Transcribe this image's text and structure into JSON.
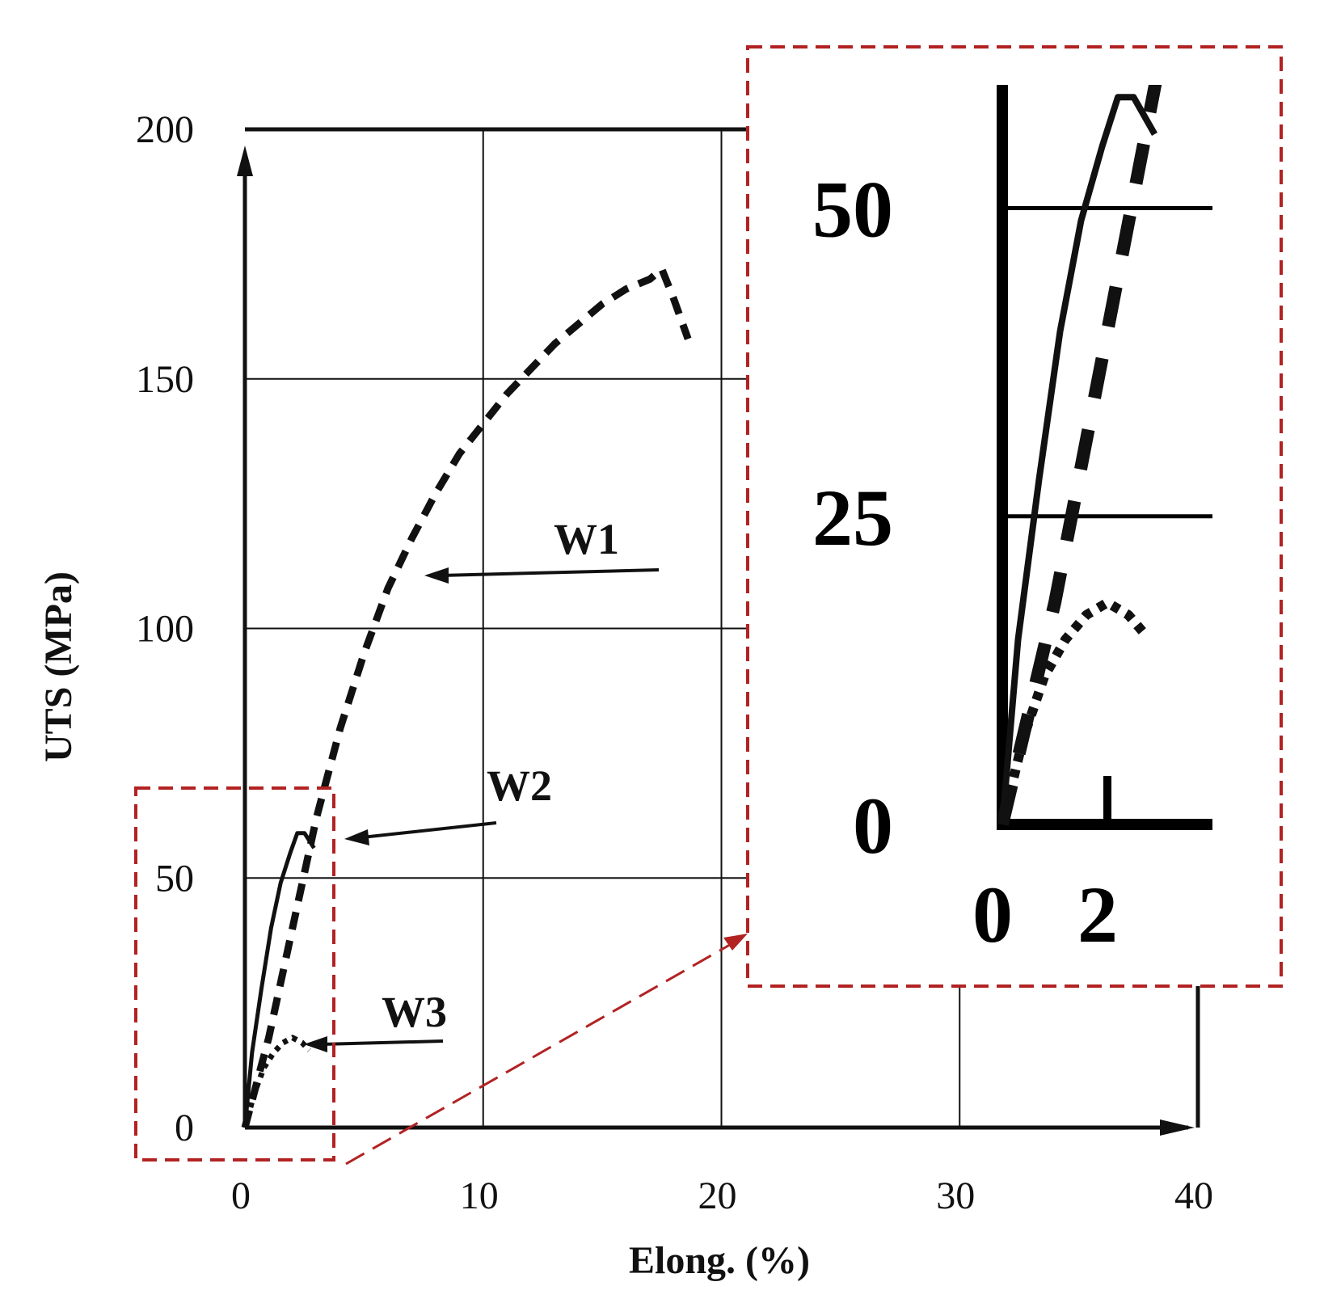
{
  "chart_data": [
    {
      "type": "line",
      "title": "",
      "xlabel": "Elong. (%)",
      "ylabel": "UTS (MPa)",
      "xlim": [
        0,
        40
      ],
      "ylim": [
        0,
        200
      ],
      "x_ticks": [
        "0",
        "10",
        "20",
        "30",
        "40"
      ],
      "y_ticks": [
        "0",
        "50",
        "100",
        "150",
        "200"
      ],
      "grid": true,
      "series": [
        {
          "name": "W1",
          "style": "dashed",
          "points": [
            [
              0,
              0
            ],
            [
              1,
              18
            ],
            [
              2,
              40
            ],
            [
              3,
              62
            ],
            [
              4,
              80
            ],
            [
              5,
              95
            ],
            [
              6,
              108
            ],
            [
              7,
              118
            ],
            [
              8,
              127
            ],
            [
              9,
              135
            ],
            [
              10,
              141
            ],
            [
              11,
              147
            ],
            [
              12,
              152
            ],
            [
              13,
              157
            ],
            [
              14,
              161
            ],
            [
              15,
              165
            ],
            [
              16,
              168
            ],
            [
              17,
              170
            ],
            [
              17.5,
              172
            ],
            [
              18,
              166
            ],
            [
              18.6,
              158
            ]
          ]
        },
        {
          "name": "W2",
          "style": "solid",
          "points": [
            [
              0,
              0
            ],
            [
              0.3,
              15
            ],
            [
              0.7,
              28
            ],
            [
              1.1,
              40
            ],
            [
              1.5,
              49
            ],
            [
              1.9,
              55
            ],
            [
              2.2,
              59
            ],
            [
              2.5,
              59
            ],
            [
              2.9,
              56
            ]
          ]
        },
        {
          "name": "W3",
          "style": "dotted",
          "points": [
            [
              0,
              0
            ],
            [
              0.4,
              7
            ],
            [
              0.8,
              12
            ],
            [
              1.2,
              15
            ],
            [
              1.6,
              17
            ],
            [
              2,
              18
            ],
            [
              2.4,
              17
            ],
            [
              2.7,
              15.5
            ]
          ]
        }
      ]
    },
    {
      "type": "line",
      "title": "",
      "inset": true,
      "xlim": [
        0,
        4
      ],
      "ylim": [
        0,
        60
      ],
      "x_ticks": [
        "0",
        "2"
      ],
      "y_ticks": [
        "0",
        "25",
        "50"
      ],
      "grid": true
    }
  ],
  "annotations": {
    "w1_label": "W1",
    "w2_label": "W2",
    "w3_label": "W3"
  },
  "colors": {
    "zoom_box": "#b22222",
    "ink": "#111111"
  }
}
